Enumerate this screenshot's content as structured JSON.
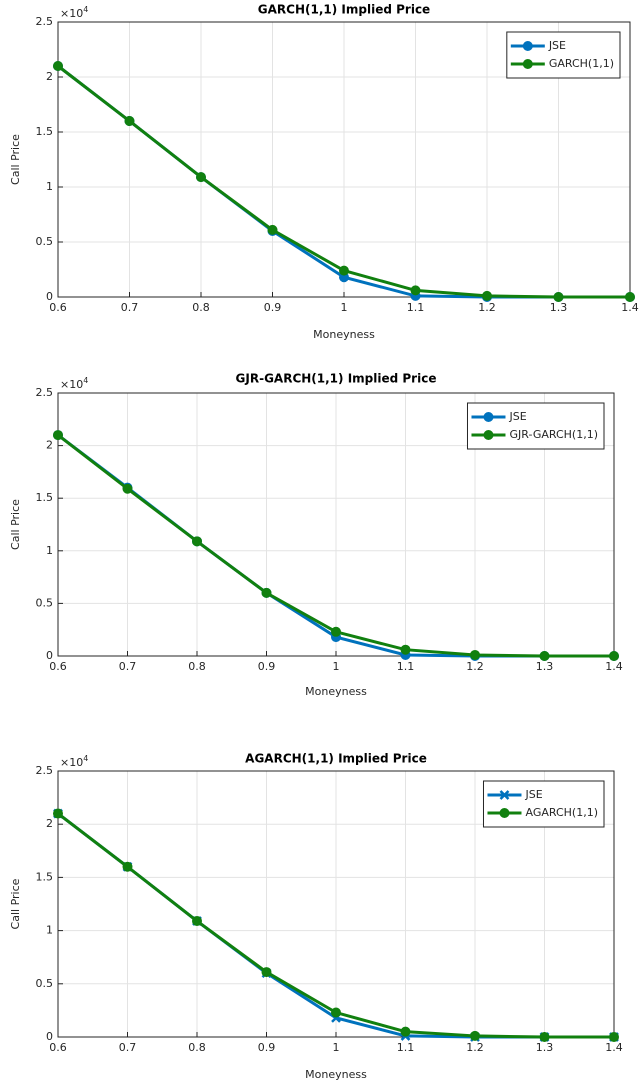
{
  "chart_data": [
    {
      "type": "line",
      "title": "GARCH(1,1) Implied Price",
      "x_label": "Moneyness",
      "y_label": "Call Price",
      "y_offset_label": {
        "base": "×10",
        "exponent": "4"
      },
      "x": [
        0.6,
        0.7,
        0.8,
        0.9,
        1,
        1.1,
        1.2,
        1.3,
        1.4
      ],
      "series": [
        {
          "name": "JSE",
          "color": "#0072bd",
          "marker": "o",
          "values": [
            2.1,
            1.6,
            1.09,
            0.6,
            0.18,
            0.01,
            0,
            0,
            0
          ]
        },
        {
          "name": "GARCH(1,1)",
          "color": "#11800f",
          "marker": "o",
          "values": [
            2.1,
            1.6,
            1.09,
            0.61,
            0.24,
            0.06,
            0.01,
            0,
            0
          ]
        }
      ],
      "xlim": [
        0.6,
        1.4
      ],
      "xticks": [
        0.6,
        0.7,
        0.8,
        0.9,
        1,
        1.1,
        1.2,
        1.3,
        1.4
      ],
      "ylim": [
        0,
        2.5
      ],
      "yticks": [
        0,
        0.5,
        1,
        1.5,
        2,
        2.5
      ],
      "grid": true,
      "legend": "northeast"
    },
    {
      "type": "line",
      "title": "GJR-GARCH(1,1) Implied Price",
      "x_label": "Moneyness",
      "y_label": "Call Price",
      "y_offset_label": {
        "base": "×10",
        "exponent": "4"
      },
      "x": [
        0.6,
        0.7,
        0.8,
        0.9,
        1,
        1.1,
        1.2,
        1.3,
        1.4
      ],
      "series": [
        {
          "name": "JSE",
          "color": "#0072bd",
          "marker": "o",
          "values": [
            2.1,
            1.6,
            1.09,
            0.6,
            0.18,
            0.01,
            0,
            0,
            0
          ]
        },
        {
          "name": "GJR-GARCH(1,1)",
          "color": "#11800f",
          "marker": "o",
          "values": [
            2.1,
            1.59,
            1.09,
            0.6,
            0.23,
            0.06,
            0.01,
            0,
            0
          ]
        }
      ],
      "xlim": [
        0.6,
        1.4
      ],
      "xticks": [
        0.6,
        0.7,
        0.8,
        0.9,
        1,
        1.1,
        1.2,
        1.3,
        1.4
      ],
      "ylim": [
        0,
        2.5
      ],
      "yticks": [
        0,
        0.5,
        1,
        1.5,
        2,
        2.5
      ],
      "grid": true,
      "legend": "northeast"
    },
    {
      "type": "line",
      "title": "AGARCH(1,1) Implied Price",
      "x_label": "Moneyness",
      "y_label": "Call Price",
      "y_offset_label": {
        "base": "×10",
        "exponent": "4"
      },
      "x": [
        0.6,
        0.7,
        0.8,
        0.9,
        1,
        1.1,
        1.2,
        1.3,
        1.4
      ],
      "series": [
        {
          "name": "JSE",
          "color": "#0072bd",
          "marker": "x",
          "values": [
            2.1,
            1.6,
            1.09,
            0.6,
            0.18,
            0.01,
            0,
            0,
            0
          ]
        },
        {
          "name": "AGARCH(1,1)",
          "color": "#11800f",
          "marker": "o",
          "values": [
            2.1,
            1.6,
            1.09,
            0.61,
            0.23,
            0.05,
            0.01,
            0,
            0
          ]
        }
      ],
      "xlim": [
        0.6,
        1.4
      ],
      "xticks": [
        0.6,
        0.7,
        0.8,
        0.9,
        1,
        1.1,
        1.2,
        1.3,
        1.4
      ],
      "ylim": [
        0,
        2.5
      ],
      "yticks": [
        0,
        0.5,
        1,
        1.5,
        2,
        2.5
      ],
      "grid": true,
      "legend": "northeast"
    }
  ]
}
